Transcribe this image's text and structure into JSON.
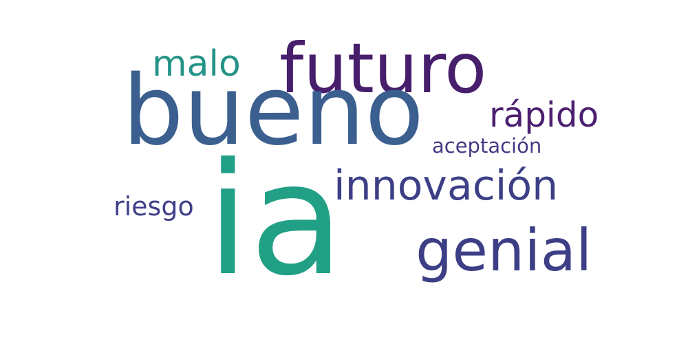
{
  "word_cloud": {
    "words": [
      {
        "id": "ia",
        "text": "ia",
        "color": "#21a085"
      },
      {
        "id": "bueno",
        "text": "bueno",
        "color": "#3b5f8f"
      },
      {
        "id": "futuro",
        "text": "futuro",
        "color": "#471e6c"
      },
      {
        "id": "genial",
        "text": "genial",
        "color": "#3d3f86"
      },
      {
        "id": "innovacion",
        "text": "innovación",
        "color": "#3c3f86"
      },
      {
        "id": "rapido",
        "text": "rápido",
        "color": "#4c1f70"
      },
      {
        "id": "malo",
        "text": "malo",
        "color": "#259387"
      },
      {
        "id": "riesgo",
        "text": "riesgo",
        "color": "#3f3f8a"
      },
      {
        "id": "aceptacion",
        "text": "aceptación",
        "color": "#443a83"
      }
    ]
  }
}
